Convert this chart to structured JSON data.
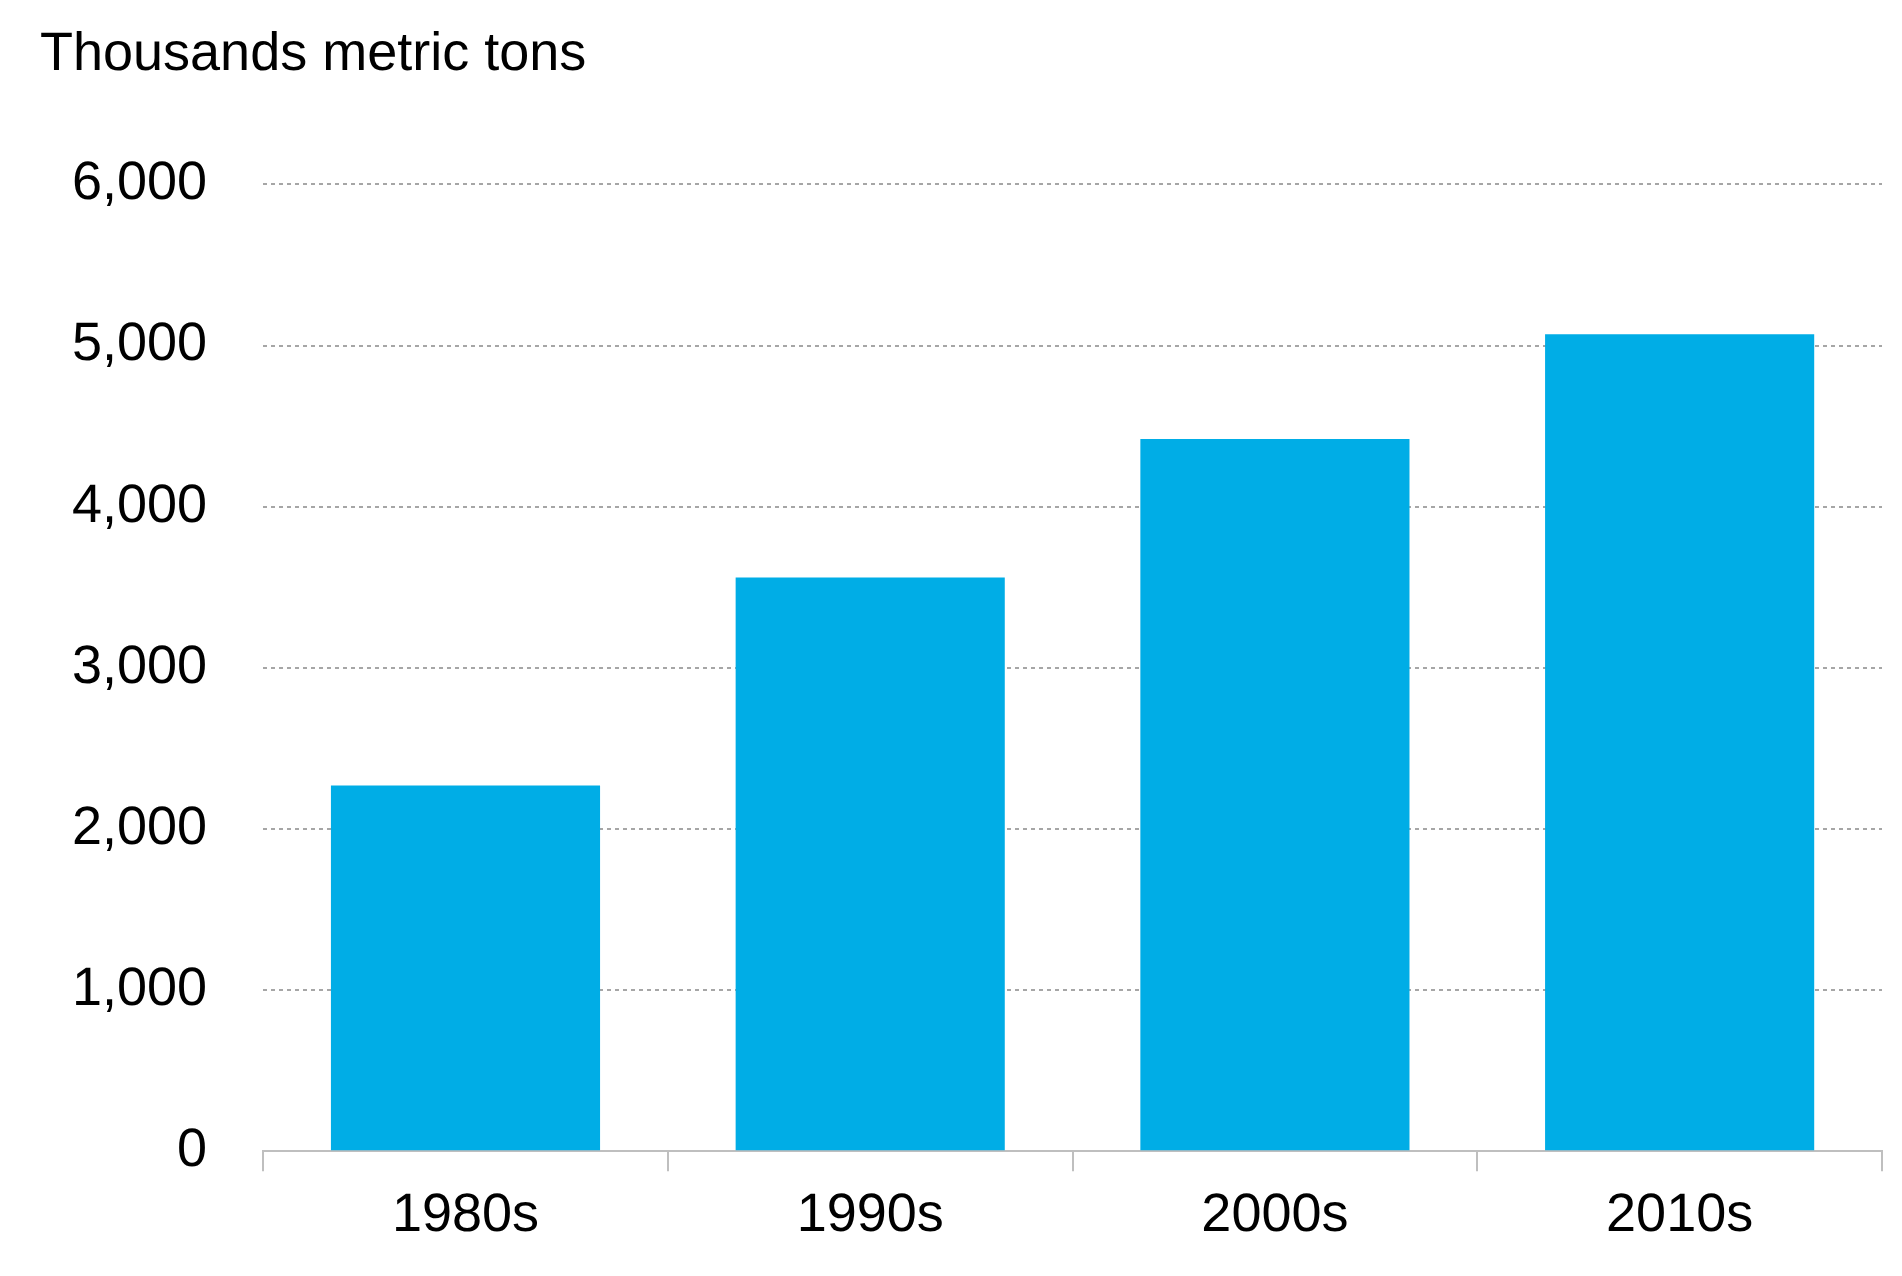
{
  "chart_data": {
    "type": "bar",
    "ylabel": "Thousands metric tons",
    "categories": [
      "1980s",
      "1990s",
      "2000s",
      "2010s"
    ],
    "values": [
      2270,
      3560,
      4420,
      5070
    ],
    "color": "#00ade6",
    "ylim": [
      0,
      6000
    ],
    "yticks": [
      0,
      {
        "value": 1000,
        "label": "1,000"
      },
      {
        "value": 2000,
        "label": "2,000"
      },
      {
        "value": 3000,
        "label": "3,000"
      },
      {
        "value": 4000,
        "label": "4,000"
      },
      {
        "value": 5000,
        "label": "5,000"
      },
      {
        "value": 6000,
        "label": "6,000"
      }
    ],
    "grid": "y",
    "legend": false
  }
}
